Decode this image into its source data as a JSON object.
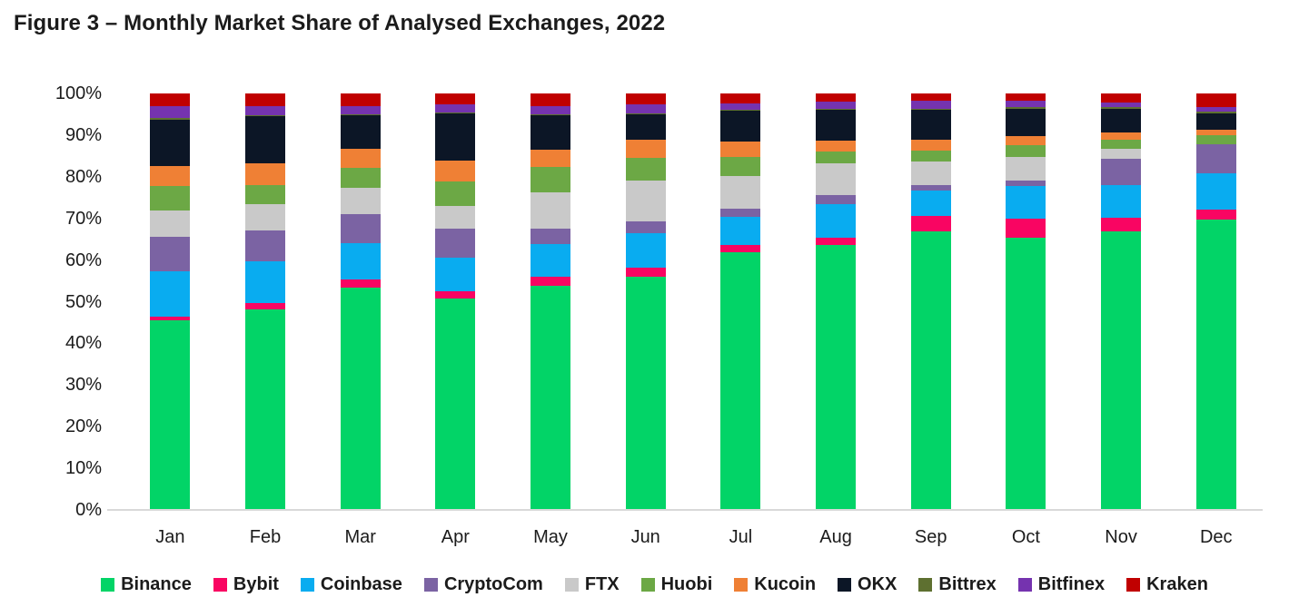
{
  "chart_data": {
    "type": "bar",
    "subtype": "stacked-100-percent",
    "title": "Figure 3 – Monthly Market Share of Analysed Exchanges, 2022",
    "xlabel": "",
    "ylabel": "",
    "ylim": [
      0,
      100
    ],
    "unit": "%",
    "grid": "off",
    "legend_position": "bottom",
    "y_ticks": [
      "0%",
      "10%",
      "20%",
      "30%",
      "40%",
      "50%",
      "60%",
      "70%",
      "80%",
      "90%",
      "100%"
    ],
    "categories": [
      "Jan",
      "Feb",
      "Mar",
      "Apr",
      "May",
      "Jun",
      "Jul",
      "Aug",
      "Sep",
      "Oct",
      "Nov",
      "Dec"
    ],
    "series": [
      {
        "name": "Binance",
        "color": "#02D467",
        "values": [
          45.5,
          48.2,
          53.4,
          50.7,
          53.8,
          56.0,
          61.8,
          63.7,
          66.8,
          65.3,
          66.8,
          69.8
        ]
      },
      {
        "name": "Bybit",
        "color": "#F90562",
        "values": [
          0.9,
          1.4,
          1.9,
          1.9,
          2.2,
          2.2,
          1.8,
          1.6,
          3.8,
          4.7,
          3.3,
          2.4
        ]
      },
      {
        "name": "Coinbase",
        "color": "#09ACF0",
        "values": [
          10.8,
          10.2,
          8.7,
          7.9,
          7.8,
          8.3,
          6.8,
          8.2,
          6.0,
          7.8,
          8.0,
          8.7
        ]
      },
      {
        "name": "CryptoCom",
        "color": "#7B63A3",
        "values": [
          8.4,
          7.4,
          7.1,
          7.0,
          3.7,
          2.7,
          1.9,
          2.2,
          1.3,
          1.4,
          6.3,
          6.8
        ]
      },
      {
        "name": "FTX",
        "color": "#C9C9C9",
        "values": [
          6.4,
          6.2,
          6.2,
          5.6,
          8.8,
          10.0,
          7.9,
          7.5,
          5.8,
          5.6,
          2.4,
          0.2
        ]
      },
      {
        "name": "Huobi",
        "color": "#6CA845",
        "values": [
          5.8,
          4.7,
          4.8,
          5.8,
          6.1,
          5.4,
          4.5,
          2.9,
          2.5,
          2.8,
          2.2,
          2.0
        ]
      },
      {
        "name": "Kucoin",
        "color": "#EF8035",
        "values": [
          4.8,
          5.1,
          4.6,
          4.9,
          4.1,
          4.3,
          3.7,
          2.6,
          2.6,
          2.2,
          1.6,
          1.4
        ]
      },
      {
        "name": "OKX",
        "color": "#0C1626",
        "values": [
          11.2,
          11.3,
          8.1,
          11.4,
          8.2,
          6.0,
          7.4,
          7.3,
          7.2,
          6.6,
          5.8,
          4.0
        ]
      },
      {
        "name": "Bittrex",
        "color": "#5E7030",
        "values": [
          0.3,
          0.3,
          0.3,
          0.3,
          0.3,
          0.3,
          0.3,
          0.3,
          0.3,
          0.3,
          0.3,
          0.3
        ]
      },
      {
        "name": "Bitfinex",
        "color": "#7533AF",
        "values": [
          2.9,
          2.2,
          1.8,
          1.9,
          2.0,
          2.2,
          1.6,
          1.8,
          1.9,
          1.5,
          1.1,
          1.2
        ]
      },
      {
        "name": "Kraken",
        "color": "#C00000",
        "values": [
          3.0,
          3.0,
          3.1,
          2.6,
          3.0,
          2.6,
          2.3,
          1.9,
          1.8,
          1.8,
          2.2,
          3.2
        ]
      }
    ]
  }
}
